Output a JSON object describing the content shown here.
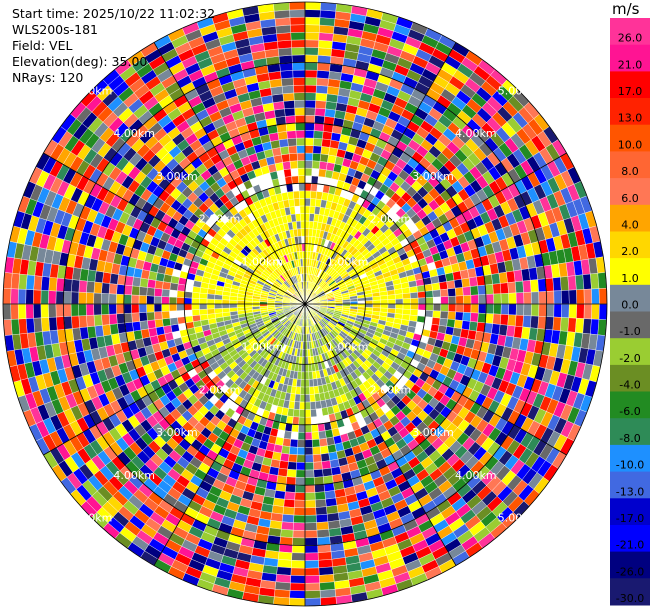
{
  "header": {
    "start_time": "Start time: 2025/10/22 11:02:32",
    "instrument": "WLS200s-181",
    "field": "Field: VEL",
    "elevation": "Elevation(deg): 35.00",
    "nrays": "NRays: 120"
  },
  "chart_data": {
    "type": "polar_ppi",
    "field": "VEL",
    "elevation_deg": 35.0,
    "n_rays": 120,
    "max_range_km": 5.0,
    "range_ring_labels": [
      "1.00km",
      "2.00km",
      "3.00km",
      "4.00km",
      "5.00km"
    ],
    "range_rings_km": [
      1,
      2,
      3,
      4,
      5
    ],
    "colorbar": {
      "unit": "m/s",
      "tick_labels": [
        "26.0",
        "21.0",
        "17.0",
        "13.0",
        "10.0",
        "8.0",
        "6.0",
        "4.0",
        "2.0",
        "1.0",
        "0.0",
        "-1.0",
        "-2.0",
        "-4.0",
        "-6.0",
        "-8.0",
        "-10.0",
        "-13.0",
        "-17.0",
        "-21.0",
        "-26.0",
        "-30.0"
      ],
      "colors": [
        "#ff3399",
        "#ff1493",
        "#ff0000",
        "#ff2200",
        "#ff5500",
        "#ff6633",
        "#ff7755",
        "#ffa500",
        "#ffd700",
        "#ffff00",
        "#778899",
        "#696969",
        "#9acd32",
        "#6b8e23",
        "#228b22",
        "#2e8b57",
        "#1e90ff",
        "#4169e1",
        "#0000cd",
        "#0000ff",
        "#000080",
        "#191970"
      ]
    },
    "description_pattern": {
      "near_range_km": 1.9,
      "near_colors": [
        "#ffff00",
        "#ffd700",
        "#778899",
        "#9acd32"
      ],
      "far_mode": "noisy"
    }
  }
}
